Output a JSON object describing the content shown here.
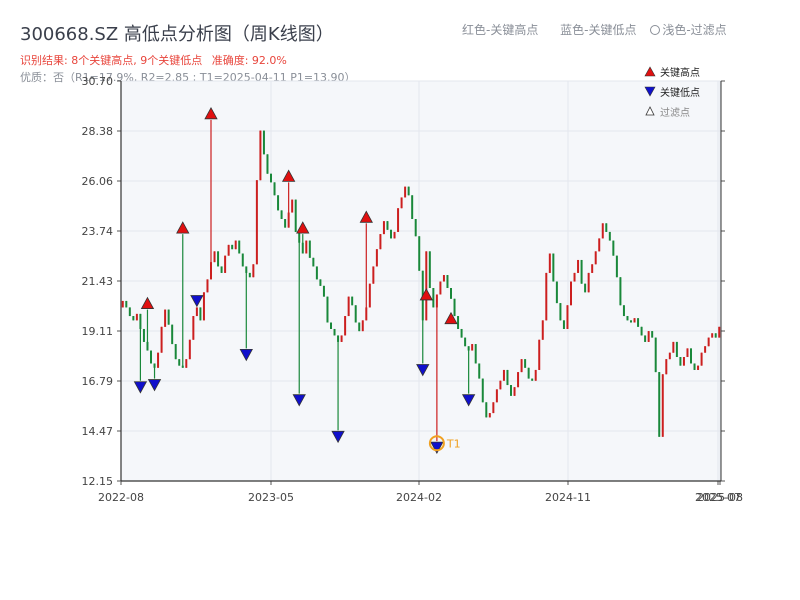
{
  "header": {
    "title": "300668.SZ 高低点分析图（周K线图）",
    "result_text": "识别结果: 8个关键高点, 9个关键低点",
    "accuracy_text": "准确度: 92.0%",
    "sub_text": "优质：否（R1=17.9%, R2=2.85 ; T1=2025-04-11 P1=13.90）",
    "legend_red": "红色-关键高点",
    "legend_blue": "蓝色-关键低点",
    "legend_light": "浅色-过滤点"
  },
  "colors": {
    "up": "#cc1f1f",
    "down": "#19883a",
    "high_marker": "#e01010",
    "low_marker": "#1010cc",
    "t1_marker": "#f0a020",
    "grid": "#e3e7ee",
    "plot_bg": "#f5f7fa"
  },
  "chart_data": {
    "type": "candlestick",
    "ylim": [
      12.15,
      30.7
    ],
    "y_ticks": [
      "30.70",
      "28.38",
      "26.06",
      "23.74",
      "21.43",
      "19.11",
      "16.79",
      "14.47",
      "12.15"
    ],
    "x_ticks": [
      "2022-08",
      "2023-05",
      "2024-02",
      "2024-11",
      "2025-07",
      "2025-08"
    ],
    "legend": {
      "high": "关键高点",
      "low": "关键低点",
      "filtered": "过滤点"
    },
    "t1_label": "T1",
    "closes": [
      20.5,
      20.2,
      19.8,
      19.6,
      19.9,
      19.2,
      18.6,
      18.2,
      17.6,
      17.4,
      18.1,
      19.3,
      20.1,
      19.4,
      18.5,
      17.8,
      17.5,
      17.4,
      17.8,
      18.7,
      19.8,
      20.2,
      19.6,
      20.9,
      21.5,
      22.3,
      22.8,
      22.1,
      21.8,
      22.6,
      23.1,
      22.9,
      23.3,
      22.7,
      22.1,
      21.8,
      21.6,
      22.2,
      26.1,
      28.4,
      27.3,
      26.4,
      26.0,
      25.4,
      24.7,
      24.3,
      23.9,
      24.6,
      25.2,
      23.7,
      23.2,
      22.7,
      23.3,
      22.5,
      22.1,
      21.5,
      21.2,
      20.7,
      19.5,
      19.2,
      18.9,
      18.6,
      18.9,
      19.8,
      20.7,
      20.3,
      19.5,
      19.1,
      19.6,
      20.2,
      21.3,
      22.1,
      22.9,
      23.6,
      24.2,
      23.8,
      23.4,
      23.7,
      24.8,
      25.3,
      25.8,
      25.4,
      24.3,
      23.5,
      21.9,
      19.6,
      22.8,
      21.1,
      20.2,
      20.8,
      21.4,
      21.7,
      21.1,
      20.6,
      19.8,
      19.2,
      18.8,
      18.4,
      18.2,
      18.5,
      17.6,
      16.9,
      15.8,
      15.1,
      15.3,
      15.8,
      16.4,
      16.8,
      17.3,
      16.6,
      16.1,
      16.5,
      17.2,
      17.8,
      17.4,
      16.9,
      16.8,
      17.3,
      18.7,
      19.6,
      21.8,
      22.7,
      21.4,
      20.4,
      19.6,
      19.2,
      20.3,
      21.4,
      21.8,
      22.4,
      21.3,
      20.9,
      21.8,
      22.2,
      22.8,
      23.4,
      24.1,
      23.7,
      23.3,
      22.6,
      21.6,
      20.3,
      19.8,
      19.6,
      19.5,
      19.7,
      19.3,
      18.9,
      18.6,
      19.1,
      18.8,
      17.2,
      14.2,
      17.1,
      17.8,
      18.1,
      18.6,
      17.9,
      17.5,
      17.9,
      18.3,
      17.6,
      17.3,
      17.5,
      18.1,
      18.4,
      18.8,
      19.0,
      18.8,
      19.3
    ],
    "key_highs": [
      {
        "week": 7,
        "price": 20.1
      },
      {
        "week": 17,
        "price": 23.6
      },
      {
        "week": 25,
        "price": 28.9
      },
      {
        "week": 47,
        "price": 26.0
      },
      {
        "week": 51,
        "price": 23.6
      },
      {
        "week": 69,
        "price": 24.1
      },
      {
        "week": 86,
        "price": 20.5
      },
      {
        "week": 93,
        "price": 19.4
      }
    ],
    "key_lows": [
      {
        "week": 5,
        "price": 16.8
      },
      {
        "week": 9,
        "price": 16.9
      },
      {
        "week": 21,
        "price": 20.8
      },
      {
        "week": 35,
        "price": 18.3
      },
      {
        "week": 50,
        "price": 16.2
      },
      {
        "week": 61,
        "price": 14.5
      },
      {
        "week": 85,
        "price": 17.6
      },
      {
        "week": 89,
        "price": 14.0
      },
      {
        "week": 98,
        "price": 16.2
      }
    ],
    "t1": {
      "week": 89,
      "price": 13.9
    }
  }
}
